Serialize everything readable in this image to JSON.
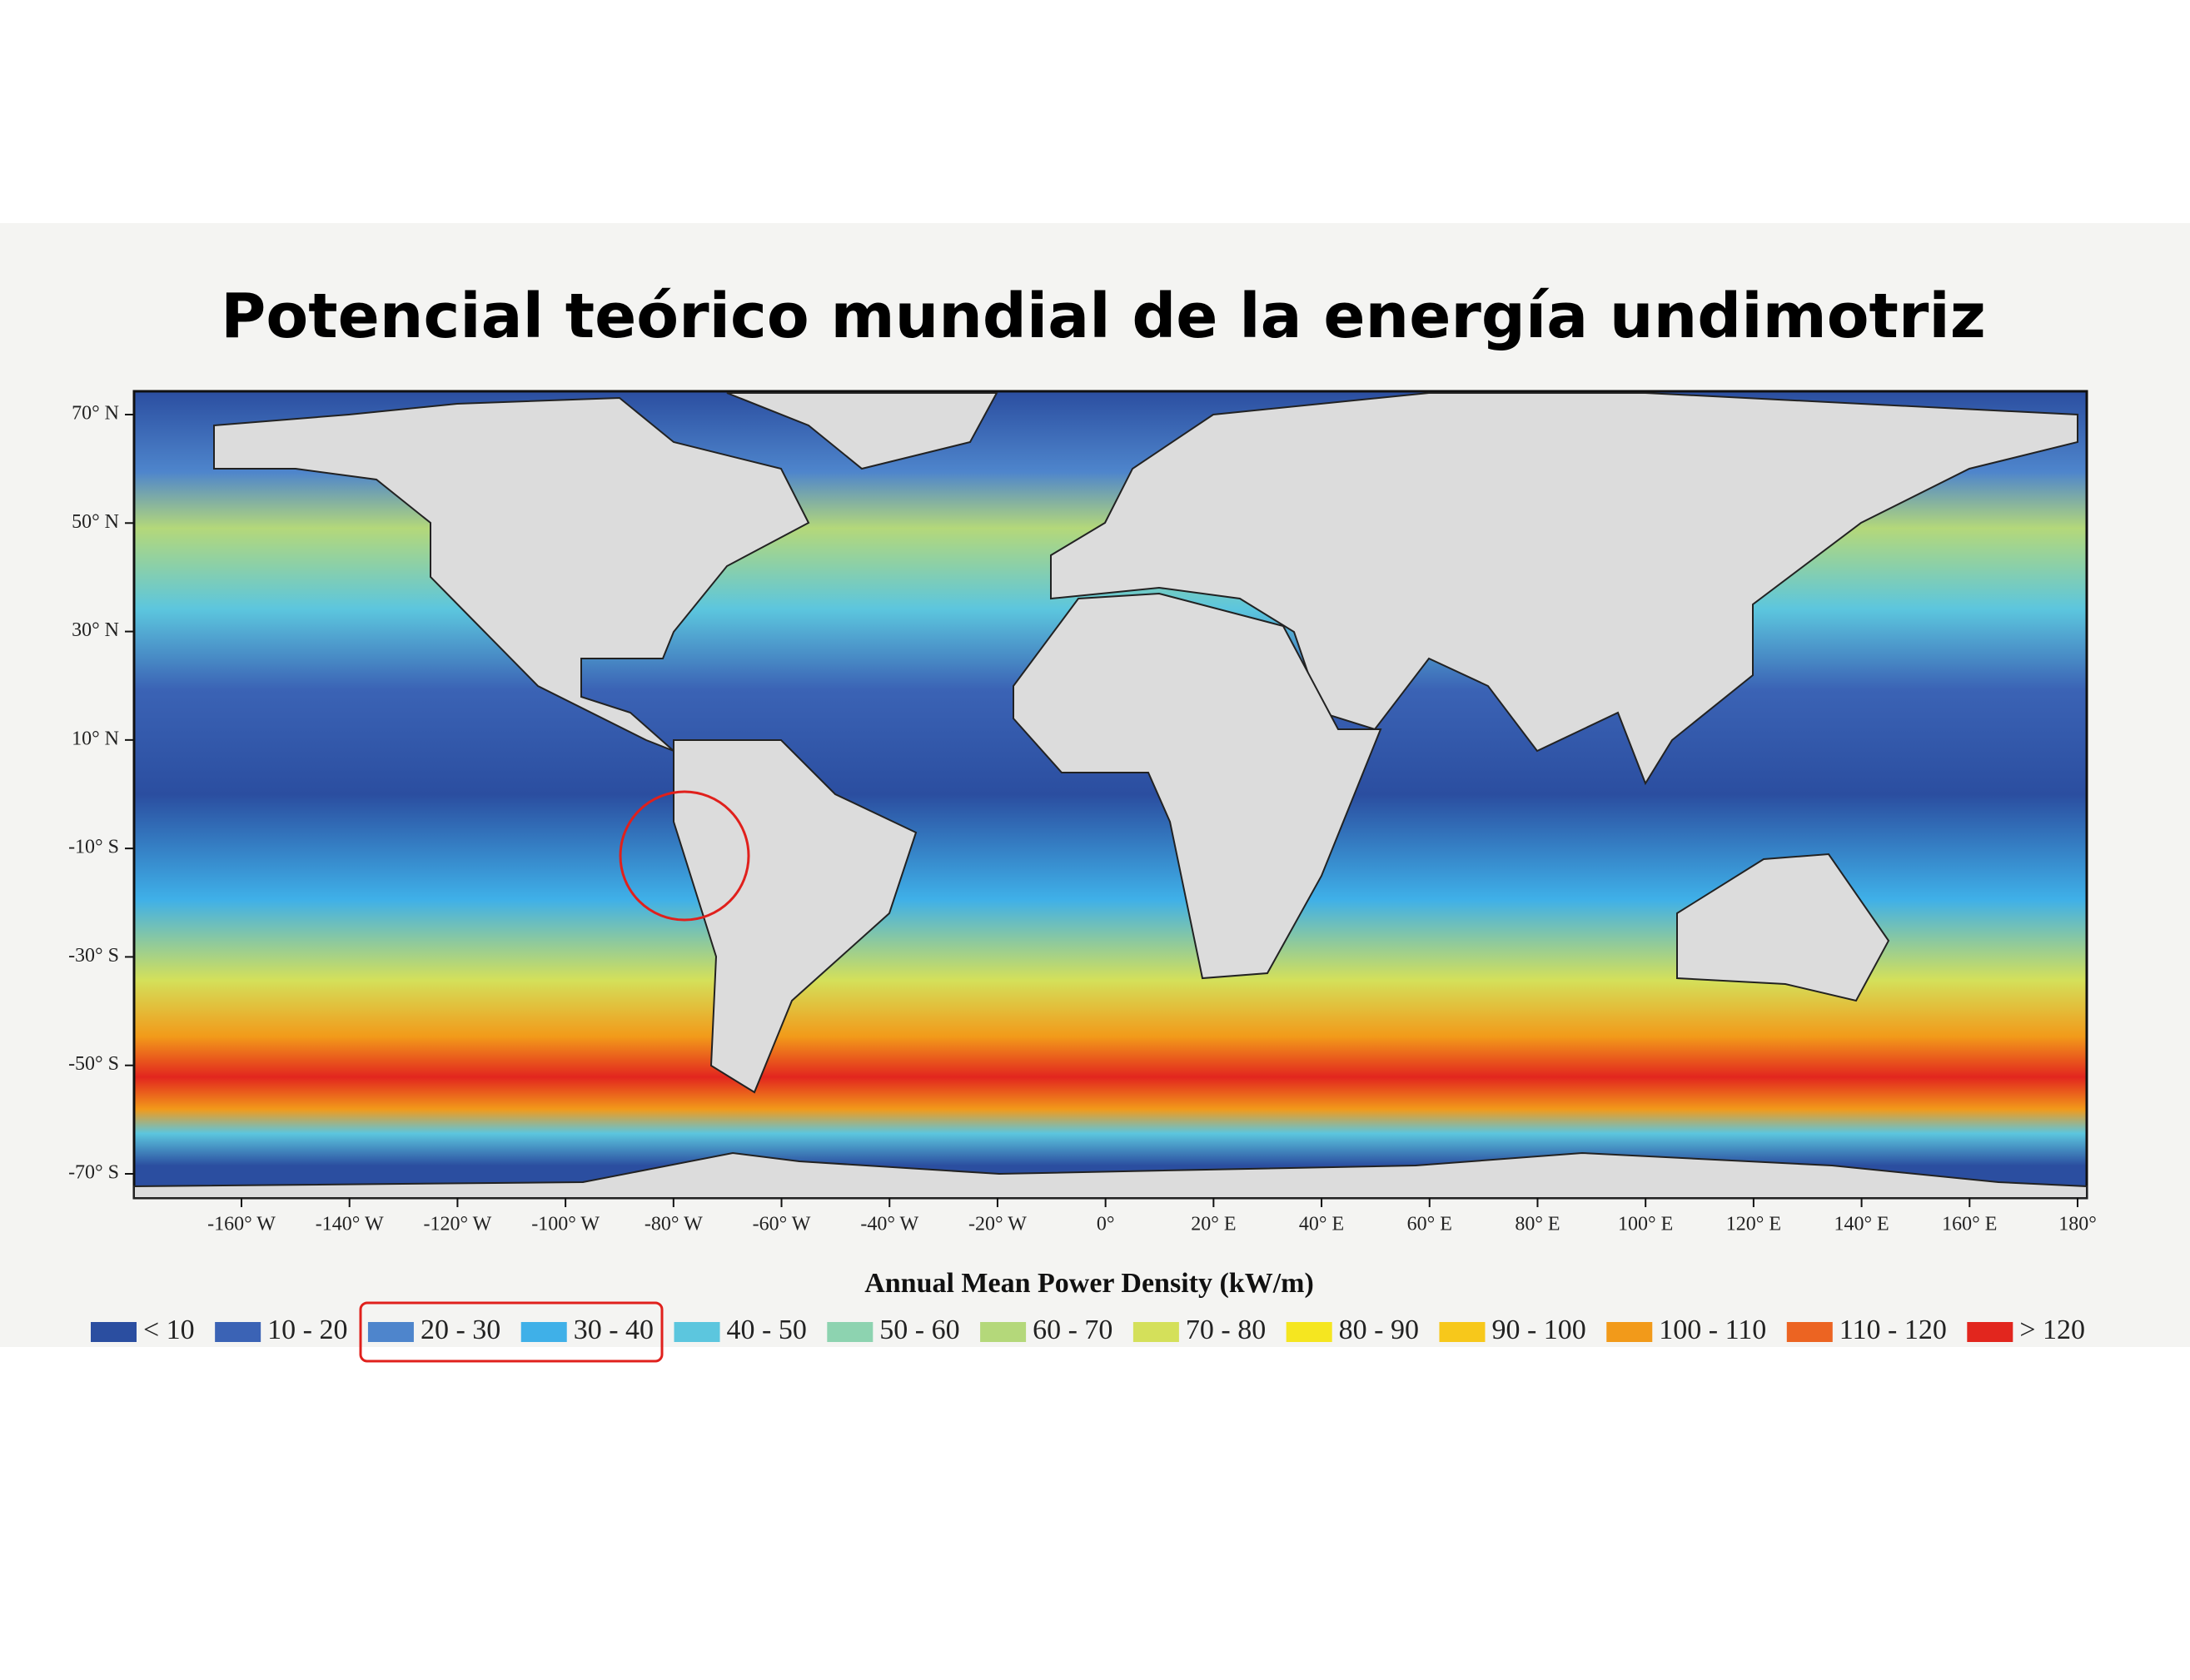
{
  "title": "Potencial teórico mundial de la energía undimotriz",
  "map": {
    "lat_labels": [
      "70° N",
      "50° N",
      "30° N",
      "10° N",
      "-10° S",
      "-30° S",
      "-50° S",
      "-70° S"
    ],
    "lon_labels": [
      "-160° W",
      "-140° W",
      "-120° W",
      "-100° W",
      "-80° W",
      "-60° W",
      "-40° W",
      "-20° W",
      "0°",
      "20° E",
      "40° E",
      "60° E",
      "80° E",
      "100° E",
      "120° E",
      "140° E",
      "160° E",
      "180°"
    ],
    "axis_title": "Annual Mean Power Density (kW/m)"
  },
  "legend": {
    "items": [
      {
        "label": "< 10",
        "color": "#2b4ea0"
      },
      {
        "label": "10 - 20",
        "color": "#3b63b5"
      },
      {
        "label": "20 - 30",
        "color": "#4e85cc"
      },
      {
        "label": "30 - 40",
        "color": "#3fb0e8"
      },
      {
        "label": "40 - 50",
        "color": "#5cc6de"
      },
      {
        "label": "50 - 60",
        "color": "#8dd3b0"
      },
      {
        "label": "60 - 70",
        "color": "#b4d87a"
      },
      {
        "label": "70 - 80",
        "color": "#d4e05a"
      },
      {
        "label": "80 - 90",
        "color": "#f5e620"
      },
      {
        "label": "90 - 100",
        "color": "#f7c81b"
      },
      {
        "label": "100 - 110",
        "color": "#f29a1a"
      },
      {
        "label": "110 - 120",
        "color": "#ec6422"
      },
      {
        "label": "> 120",
        "color": "#e2261e"
      }
    ]
  }
}
